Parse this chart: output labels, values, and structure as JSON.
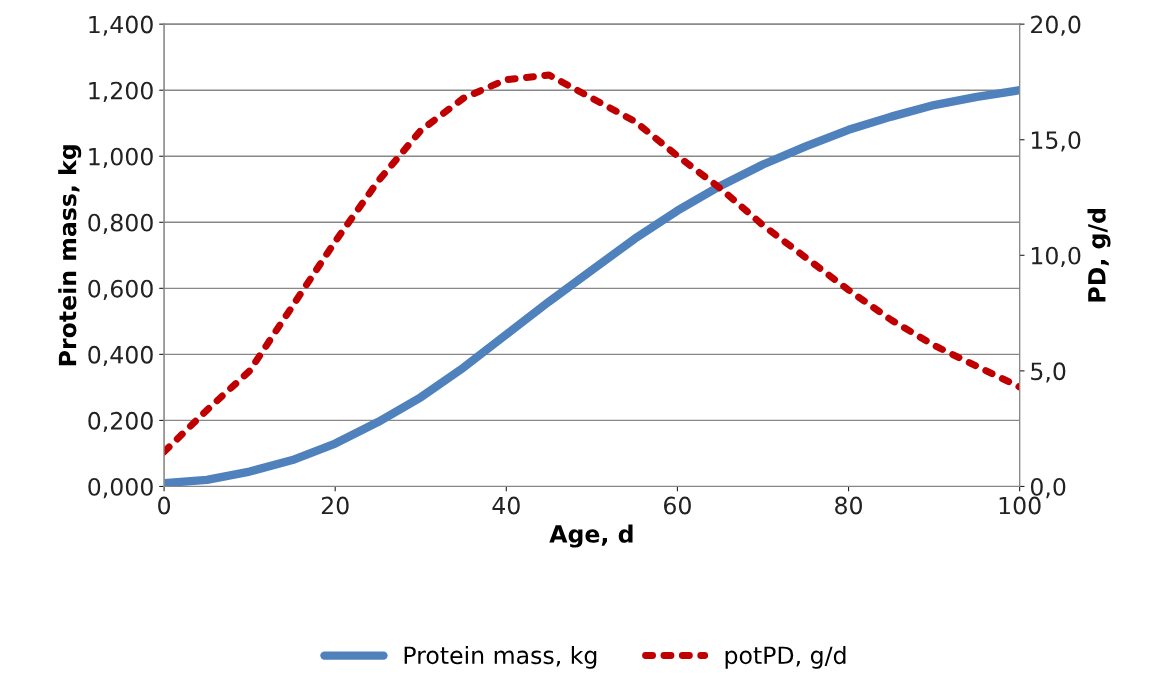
{
  "chart_data": {
    "type": "line",
    "xlabel": "Age, d",
    "ylabel": "Protein mass, kg",
    "y2label": "PD, g/d",
    "xlim": [
      0,
      100
    ],
    "xticks": [
      0,
      20,
      40,
      60,
      80,
      100
    ],
    "ylim": [
      0,
      1.4
    ],
    "yticks": [
      {
        "value": 0,
        "label": "0,000"
      },
      {
        "value": 0.2,
        "label": "0,200"
      },
      {
        "value": 0.4,
        "label": "0,400"
      },
      {
        "value": 0.6,
        "label": "0,600"
      },
      {
        "value": 0.8,
        "label": "0,800"
      },
      {
        "value": 1.0,
        "label": "1,000"
      },
      {
        "value": 1.2,
        "label": "1,200"
      },
      {
        "value": 1.4,
        "label": "1,400"
      }
    ],
    "y2lim": [
      0,
      20
    ],
    "y2ticks": [
      {
        "value": 0,
        "label": "0,0"
      },
      {
        "value": 5,
        "label": "5,0"
      },
      {
        "value": 10,
        "label": "10,0"
      },
      {
        "value": 15,
        "label": "15,0"
      },
      {
        "value": 20,
        "label": "20,0"
      }
    ],
    "grid": "y",
    "legend": "bottom",
    "marker": "none",
    "x": [
      0,
      5,
      10,
      15,
      20,
      25,
      30,
      35,
      40,
      45,
      50,
      55,
      60,
      65,
      70,
      75,
      80,
      85,
      90,
      95,
      100
    ],
    "series": [
      {
        "name": "Protein mass, kg",
        "color": "#4f81bd",
        "line_style": "solid",
        "values": [
          0.01,
          0.02,
          0.045,
          0.08,
          0.13,
          0.195,
          0.27,
          0.36,
          0.46,
          0.56,
          0.655,
          0.75,
          0.835,
          0.91,
          0.975,
          1.03,
          1.08,
          1.12,
          1.155,
          1.18,
          1.2
        ]
      },
      {
        "name": "potPD, g/d",
        "color": "#c00000",
        "line_style": "dotted",
        "axis": "y2",
        "values": [
          1.5,
          3.3,
          5.0,
          7.8,
          10.6,
          13.2,
          15.4,
          16.8,
          17.6,
          17.8,
          16.8,
          15.8,
          14.3,
          12.9,
          11.3,
          9.9,
          8.5,
          7.2,
          6.1,
          5.2,
          4.3
        ]
      }
    ]
  }
}
